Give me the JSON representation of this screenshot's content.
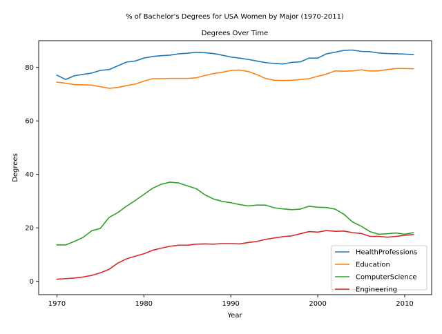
{
  "chart_data": {
    "type": "line",
    "title": "% of Bachelor's Degrees for USA Women by Major (1970-2011)",
    "subtitle": "Degrees Over Time",
    "xlabel": "Year",
    "ylabel": "Degrees",
    "xlim": [
      1967.9,
      2013.1
    ],
    "ylim": [
      -5,
      90
    ],
    "xticks": [
      1970,
      1980,
      1990,
      2000,
      2010
    ],
    "yticks": [
      0,
      20,
      40,
      60,
      80
    ],
    "grid": false,
    "legend_position": "lower-right",
    "x": [
      1970,
      1971,
      1972,
      1973,
      1974,
      1975,
      1976,
      1977,
      1978,
      1979,
      1980,
      1981,
      1982,
      1983,
      1984,
      1985,
      1986,
      1987,
      1988,
      1989,
      1990,
      1991,
      1992,
      1993,
      1994,
      1995,
      1996,
      1997,
      1998,
      1999,
      2000,
      2001,
      2002,
      2003,
      2004,
      2005,
      2006,
      2007,
      2008,
      2009,
      2010,
      2011
    ],
    "series": [
      {
        "name": "HealthProfessions",
        "color": "#1f77b4",
        "values": [
          77.1,
          75.5,
          76.9,
          77.4,
          77.9,
          78.9,
          79.2,
          80.6,
          82.0,
          82.4,
          83.5,
          84.1,
          84.4,
          84.6,
          85.1,
          85.3,
          85.7,
          85.5,
          85.2,
          84.6,
          83.9,
          83.5,
          83.0,
          82.4,
          81.8,
          81.5,
          81.3,
          81.9,
          82.1,
          83.5,
          83.5,
          85.1,
          85.7,
          86.4,
          86.5,
          86.0,
          85.9,
          85.4,
          85.2,
          85.1,
          85.0,
          84.8
        ]
      },
      {
        "name": "Education",
        "color": "#ff7f0e",
        "values": [
          74.5,
          74.1,
          73.6,
          73.5,
          73.4,
          72.8,
          72.2,
          72.5,
          73.2,
          73.8,
          74.9,
          75.8,
          75.8,
          75.9,
          75.9,
          75.9,
          76.1,
          77.0,
          77.7,
          78.2,
          78.9,
          79.0,
          78.5,
          77.3,
          75.9,
          75.2,
          75.1,
          75.2,
          75.5,
          75.8,
          76.7,
          77.5,
          78.7,
          78.6,
          78.7,
          79.1,
          78.7,
          78.7,
          79.2,
          79.6,
          79.6,
          79.5
        ]
      },
      {
        "name": "ComputerScience",
        "color": "#2ca02c",
        "values": [
          13.6,
          13.6,
          14.9,
          16.4,
          18.9,
          19.8,
          23.9,
          25.7,
          28.1,
          30.2,
          32.5,
          34.8,
          36.3,
          37.1,
          36.8,
          35.7,
          34.7,
          32.4,
          30.8,
          29.9,
          29.4,
          28.7,
          28.2,
          28.5,
          28.5,
          27.5,
          27.1,
          26.8,
          27.0,
          28.1,
          27.7,
          27.6,
          27.0,
          25.1,
          22.2,
          20.6,
          18.6,
          17.6,
          17.8,
          18.1,
          17.6,
          18.2
        ]
      },
      {
        "name": "Engineering",
        "color": "#d62728",
        "values": [
          0.8,
          1.0,
          1.2,
          1.6,
          2.2,
          3.2,
          4.5,
          6.8,
          8.4,
          9.4,
          10.3,
          11.6,
          12.4,
          13.1,
          13.5,
          13.5,
          13.9,
          14.0,
          13.9,
          14.1,
          14.1,
          14.0,
          14.5,
          14.9,
          15.7,
          16.2,
          16.7,
          17.0,
          17.8,
          18.6,
          18.4,
          19.0,
          18.7,
          18.8,
          18.2,
          17.9,
          16.8,
          16.8,
          16.5,
          16.8,
          17.2,
          17.5
        ]
      }
    ]
  }
}
